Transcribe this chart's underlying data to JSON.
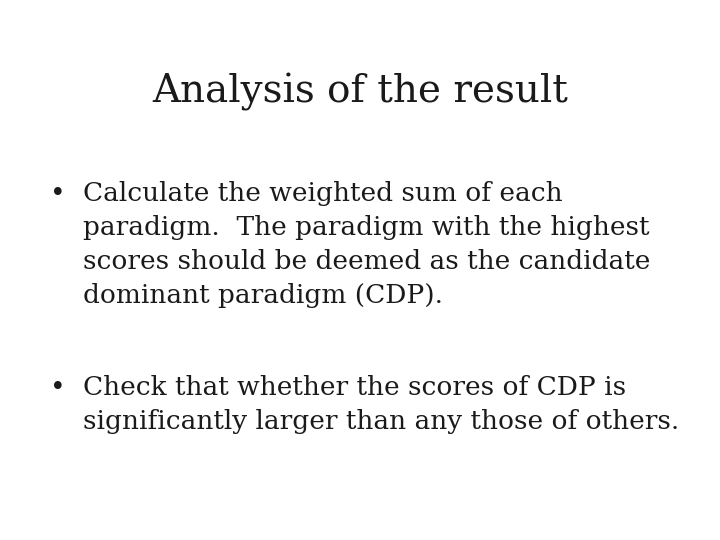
{
  "title": "Analysis of the result",
  "title_fontsize": 28,
  "title_font": "serif",
  "background_color": "#ffffff",
  "text_color": "#1a1a1a",
  "bullet1_line1": "Calculate the weighted sum of each",
  "bullet1_line2": "paradigm.  The paradigm with the highest",
  "bullet1_line3": "scores should be deemed as the candidate",
  "bullet1_line4": "dominant paradigm (CDP).",
  "bullet2_line1": "Check that whether the scores of CDP is",
  "bullet2_line2": "significantly larger than any those of others.",
  "body_fontsize": 19,
  "body_font": "serif",
  "bullet_fontsize": 19
}
